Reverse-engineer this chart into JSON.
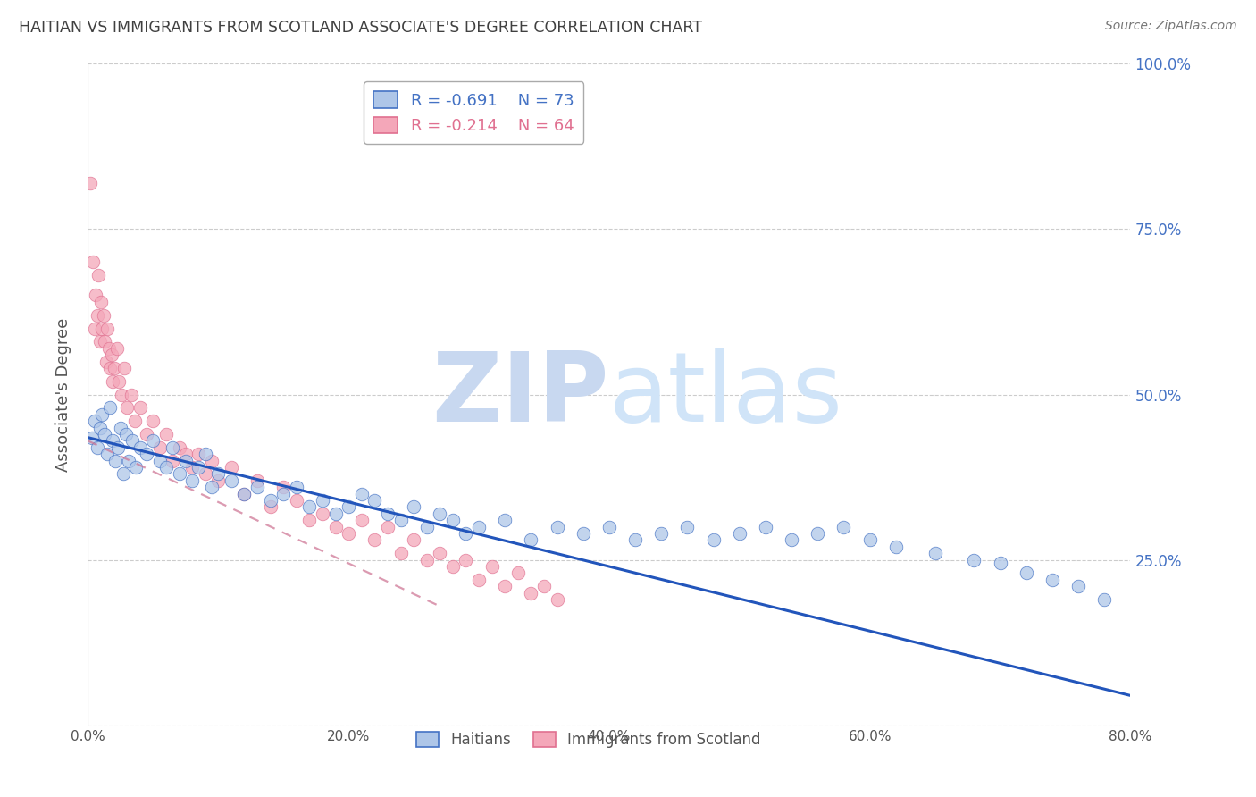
{
  "title": "HAITIAN VS IMMIGRANTS FROM SCOTLAND ASSOCIATE'S DEGREE CORRELATION CHART",
  "source": "Source: ZipAtlas.com",
  "ylabel": "Associate's Degree",
  "xlim": [
    0.0,
    80.0
  ],
  "ylim": [
    0.0,
    100.0
  ],
  "haitians_R": -0.691,
  "haitians_N": 73,
  "scotland_R": -0.214,
  "scotland_N": 64,
  "haitians_color": "#aec6e8",
  "scotland_color": "#f4a7b9",
  "haitians_edge_color": "#4472c4",
  "scotland_edge_color": "#e07090",
  "haitians_line_color": "#2255bb",
  "scotland_line_color": "#cc7090",
  "background_color": "#ffffff",
  "grid_color": "#cccccc",
  "right_axis_color": "#4472c4",
  "title_color": "#404040",
  "haitians_trend_x0": 0.0,
  "haitians_trend_y0": 43.5,
  "haitians_trend_x1": 80.0,
  "haitians_trend_y1": 4.5,
  "scotland_trend_x0": 0.0,
  "scotland_trend_y0": 43.0,
  "scotland_trend_x1": 27.0,
  "scotland_trend_y1": 18.0,
  "haitians_x": [
    0.3,
    0.5,
    0.7,
    0.9,
    1.1,
    1.3,
    1.5,
    1.7,
    1.9,
    2.1,
    2.3,
    2.5,
    2.7,
    2.9,
    3.1,
    3.4,
    3.7,
    4.0,
    4.5,
    5.0,
    5.5,
    6.0,
    6.5,
    7.0,
    7.5,
    8.0,
    8.5,
    9.0,
    9.5,
    10.0,
    11.0,
    12.0,
    13.0,
    14.0,
    15.0,
    16.0,
    17.0,
    18.0,
    19.0,
    20.0,
    21.0,
    22.0,
    23.0,
    24.0,
    25.0,
    26.0,
    27.0,
    28.0,
    29.0,
    30.0,
    32.0,
    34.0,
    36.0,
    38.0,
    40.0,
    42.0,
    44.0,
    46.0,
    48.0,
    50.0,
    52.0,
    54.0,
    56.0,
    58.0,
    60.0,
    62.0,
    65.0,
    68.0,
    70.0,
    72.0,
    74.0,
    76.0,
    78.0
  ],
  "haitians_y": [
    43.5,
    46.0,
    42.0,
    45.0,
    47.0,
    44.0,
    41.0,
    48.0,
    43.0,
    40.0,
    42.0,
    45.0,
    38.0,
    44.0,
    40.0,
    43.0,
    39.0,
    42.0,
    41.0,
    43.0,
    40.0,
    39.0,
    42.0,
    38.0,
    40.0,
    37.0,
    39.0,
    41.0,
    36.0,
    38.0,
    37.0,
    35.0,
    36.0,
    34.0,
    35.0,
    36.0,
    33.0,
    34.0,
    32.0,
    33.0,
    35.0,
    34.0,
    32.0,
    31.0,
    33.0,
    30.0,
    32.0,
    31.0,
    29.0,
    30.0,
    31.0,
    28.0,
    30.0,
    29.0,
    30.0,
    28.0,
    29.0,
    30.0,
    28.0,
    29.0,
    30.0,
    28.0,
    29.0,
    30.0,
    28.0,
    27.0,
    26.0,
    25.0,
    24.5,
    23.0,
    22.0,
    21.0,
    19.0
  ],
  "scotland_x": [
    0.2,
    0.4,
    0.5,
    0.6,
    0.7,
    0.8,
    0.9,
    1.0,
    1.1,
    1.2,
    1.3,
    1.4,
    1.5,
    1.6,
    1.7,
    1.8,
    1.9,
    2.0,
    2.2,
    2.4,
    2.6,
    2.8,
    3.0,
    3.3,
    3.6,
    4.0,
    4.5,
    5.0,
    5.5,
    6.0,
    6.5,
    7.0,
    7.5,
    8.0,
    8.5,
    9.0,
    9.5,
    10.0,
    11.0,
    12.0,
    13.0,
    14.0,
    15.0,
    16.0,
    17.0,
    18.0,
    19.0,
    20.0,
    21.0,
    22.0,
    23.0,
    24.0,
    25.0,
    26.0,
    27.0,
    28.0,
    29.0,
    30.0,
    31.0,
    32.0,
    33.0,
    34.0,
    35.0,
    36.0
  ],
  "scotland_y": [
    82.0,
    70.0,
    60.0,
    65.0,
    62.0,
    68.0,
    58.0,
    64.0,
    60.0,
    62.0,
    58.0,
    55.0,
    60.0,
    57.0,
    54.0,
    56.0,
    52.0,
    54.0,
    57.0,
    52.0,
    50.0,
    54.0,
    48.0,
    50.0,
    46.0,
    48.0,
    44.0,
    46.0,
    42.0,
    44.0,
    40.0,
    42.0,
    41.0,
    39.0,
    41.0,
    38.0,
    40.0,
    37.0,
    39.0,
    35.0,
    37.0,
    33.0,
    36.0,
    34.0,
    31.0,
    32.0,
    30.0,
    29.0,
    31.0,
    28.0,
    30.0,
    26.0,
    28.0,
    25.0,
    26.0,
    24.0,
    25.0,
    22.0,
    24.0,
    21.0,
    23.0,
    20.0,
    21.0,
    19.0
  ]
}
